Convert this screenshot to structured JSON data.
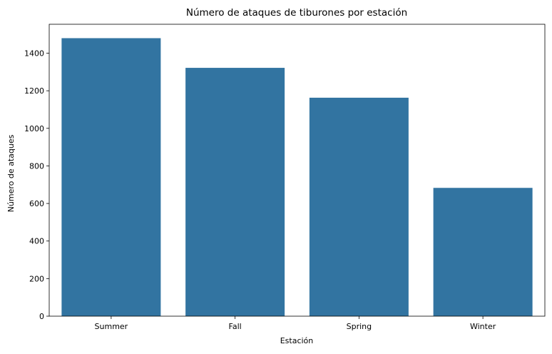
{
  "chart_data": {
    "type": "bar",
    "title": "Número de ataques de tiburones por estación",
    "xlabel": "Estación",
    "ylabel": "Número de ataques",
    "categories": [
      "Summer",
      "Fall",
      "Spring",
      "Winter"
    ],
    "values": [
      1480,
      1322,
      1163,
      683
    ],
    "ylim": [
      0,
      1554
    ],
    "yticks": [
      0,
      200,
      400,
      600,
      800,
      1000,
      1200,
      1400
    ],
    "grid": false,
    "bar_color": "#3274a1"
  }
}
